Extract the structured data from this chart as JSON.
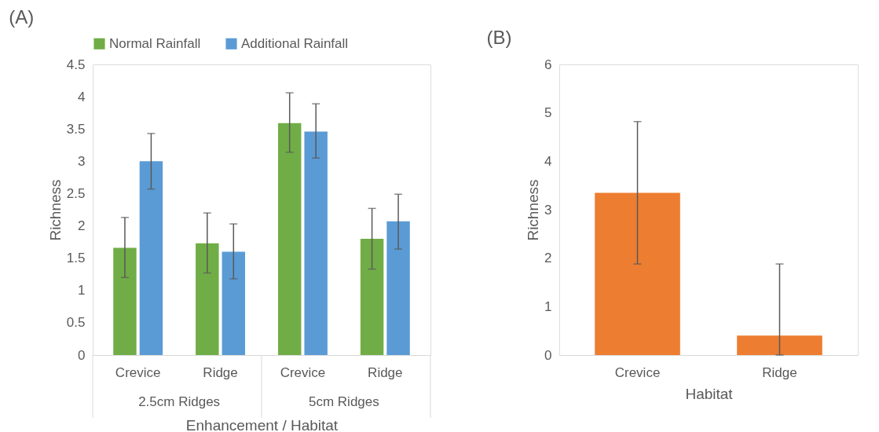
{
  "chart_data": [
    {
      "type": "bar",
      "title": "(A)",
      "xlabel": "Enhancement / Habitat",
      "ylabel": "Richness",
      "categories": [
        "Crevice",
        "Ridge",
        "Crevice",
        "Ridge"
      ],
      "annotations": [
        "2.5cm Ridges",
        "5cm Ridges"
      ],
      "series": [
        {
          "name": "Normal Rainfall",
          "color": "#70ad47",
          "values": [
            1.66,
            1.73,
            3.59,
            1.8
          ],
          "errors": [
            [
              1.2,
              2.13
            ],
            [
              1.27,
              2.2
            ],
            [
              3.14,
              4.06
            ],
            [
              1.33,
              2.27
            ]
          ]
        },
        {
          "name": "Additional Rainfall",
          "color": "#5b9bd5",
          "values": [
            3.0,
            1.6,
            3.46,
            2.07
          ],
          "errors": [
            [
              2.57,
              3.43
            ],
            [
              1.18,
              2.03
            ],
            [
              3.05,
              3.89
            ],
            [
              1.64,
              2.49
            ]
          ]
        }
      ],
      "ylim": [
        0,
        4.5
      ],
      "yticks": [
        0,
        0.5,
        1,
        1.5,
        2,
        2.5,
        3,
        3.5,
        4,
        4.5
      ],
      "legend": "top"
    },
    {
      "type": "bar",
      "title": "(B)",
      "xlabel": "Habitat",
      "ylabel": "Richness",
      "categories": [
        "Crevice",
        "Ridge"
      ],
      "values": [
        3.35,
        0.4
      ],
      "color": "#ed7d31",
      "errors": [
        [
          1.88,
          4.82
        ],
        [
          0,
          1.88
        ]
      ],
      "ylim": [
        0,
        6
      ],
      "yticks": [
        0,
        1,
        2,
        3,
        4,
        5,
        6
      ]
    }
  ]
}
